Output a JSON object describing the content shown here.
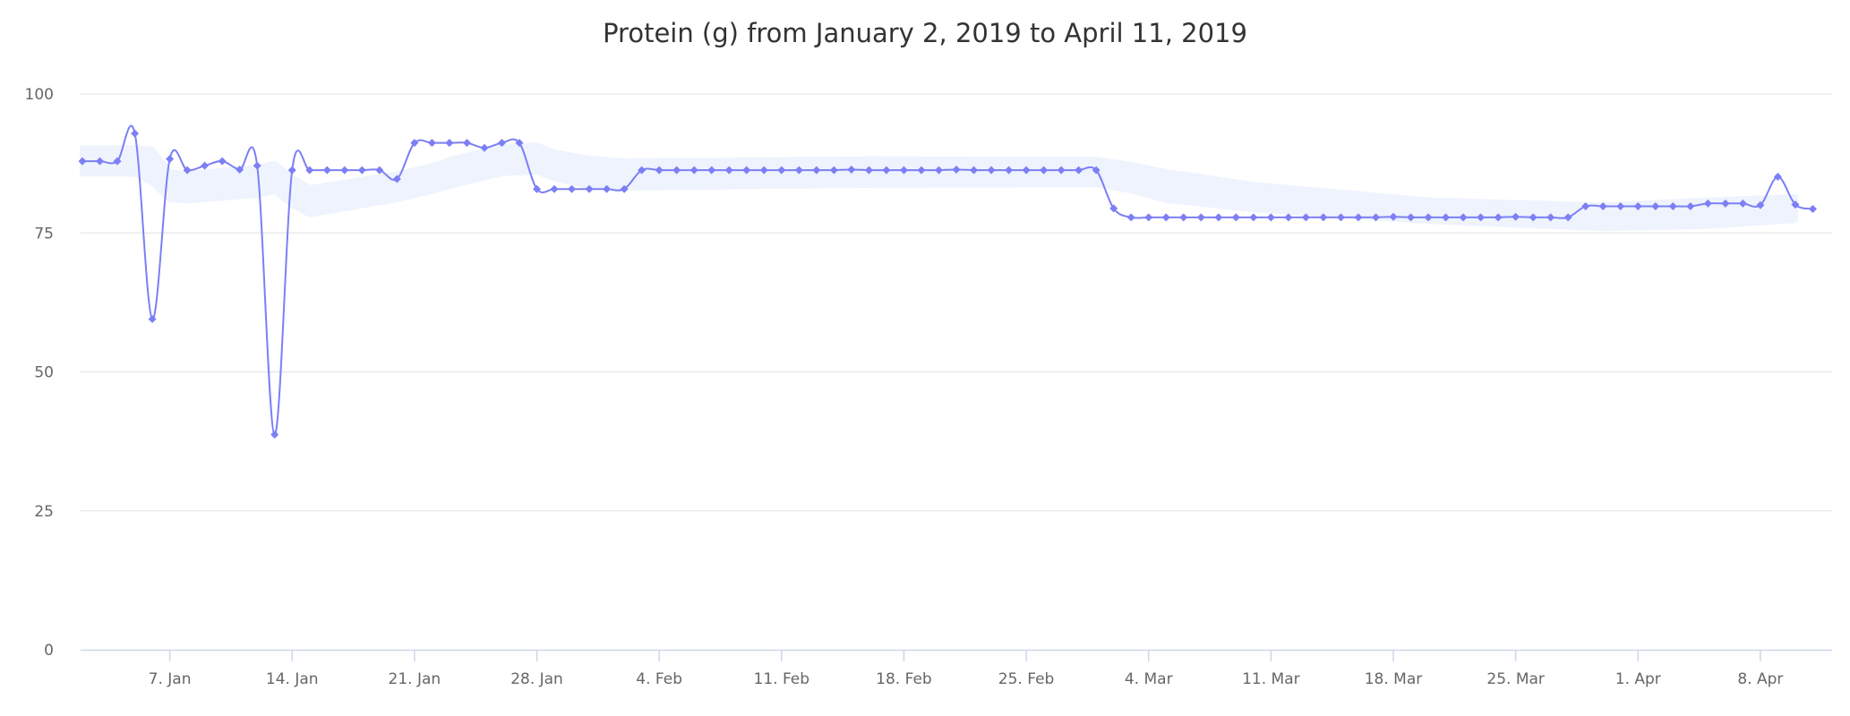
{
  "chart_data": {
    "type": "line",
    "title": "Protein (g) from January 2, 2019 to April 11, 2019",
    "xlabel": "",
    "ylabel": "",
    "ylim": [
      0,
      100
    ],
    "yticks": [
      "0",
      "25",
      "50",
      "75",
      "100"
    ],
    "xticks": [
      "7. Jan",
      "14. Jan",
      "21. Jan",
      "28. Jan",
      "4. Feb",
      "11. Feb",
      "18. Feb",
      "25. Feb",
      "4. Mar",
      "11. Mar",
      "18. Mar",
      "25. Mar",
      "1. Apr",
      "8. Apr"
    ],
    "xtick_dates": [
      "2019-01-07",
      "2019-01-14",
      "2019-01-21",
      "2019-01-28",
      "2019-02-04",
      "2019-02-11",
      "2019-02-18",
      "2019-02-25",
      "2019-03-04",
      "2019-03-11",
      "2019-03-18",
      "2019-03-25",
      "2019-04-01",
      "2019-04-08"
    ],
    "grid": true,
    "legend": "none",
    "colors": {
      "line": "#7c7ff5",
      "band": "#eef3fd",
      "grid": "#e6e6e6",
      "axis": "#ccd6eb"
    },
    "x": [
      "2019-01-02",
      "2019-01-03",
      "2019-01-04",
      "2019-01-05",
      "2019-01-06",
      "2019-01-07",
      "2019-01-08",
      "2019-01-09",
      "2019-01-10",
      "2019-01-11",
      "2019-01-12",
      "2019-01-13",
      "2019-01-14",
      "2019-01-15",
      "2019-01-16",
      "2019-01-17",
      "2019-01-18",
      "2019-01-19",
      "2019-01-20",
      "2019-01-21",
      "2019-01-22",
      "2019-01-23",
      "2019-01-24",
      "2019-01-25",
      "2019-01-26",
      "2019-01-27",
      "2019-01-28",
      "2019-01-29",
      "2019-01-30",
      "2019-01-31",
      "2019-02-01",
      "2019-02-02",
      "2019-02-03",
      "2019-02-04",
      "2019-02-05",
      "2019-02-06",
      "2019-02-07",
      "2019-02-08",
      "2019-02-09",
      "2019-02-10",
      "2019-02-11",
      "2019-02-12",
      "2019-02-13",
      "2019-02-14",
      "2019-02-15",
      "2019-02-16",
      "2019-02-17",
      "2019-02-18",
      "2019-02-19",
      "2019-02-20",
      "2019-02-21",
      "2019-02-22",
      "2019-02-23",
      "2019-02-24",
      "2019-02-25",
      "2019-02-26",
      "2019-02-27",
      "2019-02-28",
      "2019-03-01",
      "2019-03-02",
      "2019-03-03",
      "2019-03-04",
      "2019-03-05",
      "2019-03-06",
      "2019-03-07",
      "2019-03-08",
      "2019-03-09",
      "2019-03-10",
      "2019-03-11",
      "2019-03-12",
      "2019-03-13",
      "2019-03-14",
      "2019-03-15",
      "2019-03-16",
      "2019-03-17",
      "2019-03-18",
      "2019-03-19",
      "2019-03-20",
      "2019-03-21",
      "2019-03-22",
      "2019-03-23",
      "2019-03-24",
      "2019-03-25",
      "2019-03-26",
      "2019-03-27",
      "2019-03-28",
      "2019-03-29",
      "2019-03-30",
      "2019-03-31",
      "2019-04-01",
      "2019-04-02",
      "2019-04-03",
      "2019-04-04",
      "2019-04-05",
      "2019-04-06",
      "2019-04-07",
      "2019-04-08",
      "2019-04-09",
      "2019-04-10",
      "2019-04-11"
    ],
    "series": [
      {
        "type": "spline",
        "values": [
          87.9,
          87.9,
          87.9,
          92.9,
          59.5,
          88.3,
          86.3,
          87.1,
          87.9,
          86.4,
          87.1,
          38.7,
          86.3,
          86.3,
          86.3,
          86.3,
          86.3,
          86.3,
          84.7,
          91.2,
          91.2,
          91.2,
          91.2,
          90.3,
          91.2,
          91.2,
          82.9,
          82.9,
          82.9,
          82.9,
          82.9,
          82.9,
          86.3,
          86.3,
          86.3,
          86.3,
          86.3,
          86.3,
          86.3,
          86.3,
          86.3,
          86.3,
          86.3,
          86.3,
          86.4,
          86.3,
          86.3,
          86.3,
          86.3,
          86.3,
          86.4,
          86.3,
          86.3,
          86.3,
          86.3,
          86.3,
          86.3,
          86.3,
          86.3,
          79.4,
          77.8,
          77.8,
          77.8,
          77.8,
          77.8,
          77.8,
          77.8,
          77.8,
          77.8,
          77.8,
          77.8,
          77.8,
          77.8,
          77.8,
          77.8,
          77.9,
          77.8,
          77.8,
          77.8,
          77.8,
          77.8,
          77.8,
          77.9,
          77.8,
          77.8,
          77.8,
          79.8,
          79.8,
          79.8,
          79.8,
          79.8,
          79.8,
          79.8,
          80.3,
          80.3,
          80.3,
          80.0,
          85.1,
          80.1,
          79.3
        ]
      },
      {
        "type": "arearange",
        "points": [
          [
            "2019-01-02",
            85.6,
            90.3
          ],
          [
            "2019-01-05",
            85.6,
            90.3
          ],
          [
            "2019-01-06",
            84.0,
            90.0
          ],
          [
            "2019-01-07",
            81.0,
            86.0
          ],
          [
            "2019-01-08",
            80.8,
            85.6
          ],
          [
            "2019-01-12",
            81.8,
            86.8
          ],
          [
            "2019-01-13",
            82.5,
            87.5
          ],
          [
            "2019-01-14",
            80.0,
            85.0
          ],
          [
            "2019-01-15",
            78.3,
            83.1
          ],
          [
            "2019-01-20",
            81.0,
            85.6
          ],
          [
            "2019-01-22",
            82.5,
            87.0
          ],
          [
            "2019-01-23",
            83.4,
            88.2
          ],
          [
            "2019-01-26",
            85.7,
            90.5
          ],
          [
            "2019-01-28",
            86.0,
            90.8
          ],
          [
            "2019-01-29",
            84.8,
            89.5
          ],
          [
            "2019-01-31",
            83.4,
            88.4
          ],
          [
            "2019-02-02",
            83.1,
            87.9
          ],
          [
            "2019-02-16",
            83.6,
            88.3
          ],
          [
            "2019-03-01",
            83.7,
            88.2
          ],
          [
            "2019-03-03",
            82.6,
            87.3
          ],
          [
            "2019-03-05",
            80.9,
            86.0
          ],
          [
            "2019-03-10",
            79.2,
            83.7
          ],
          [
            "2019-03-20",
            77.1,
            80.9
          ],
          [
            "2019-03-30",
            75.8,
            80.0
          ],
          [
            "2019-04-05",
            76.2,
            80.9
          ],
          [
            "2019-04-10",
            77.3,
            81.5
          ]
        ]
      }
    ]
  }
}
